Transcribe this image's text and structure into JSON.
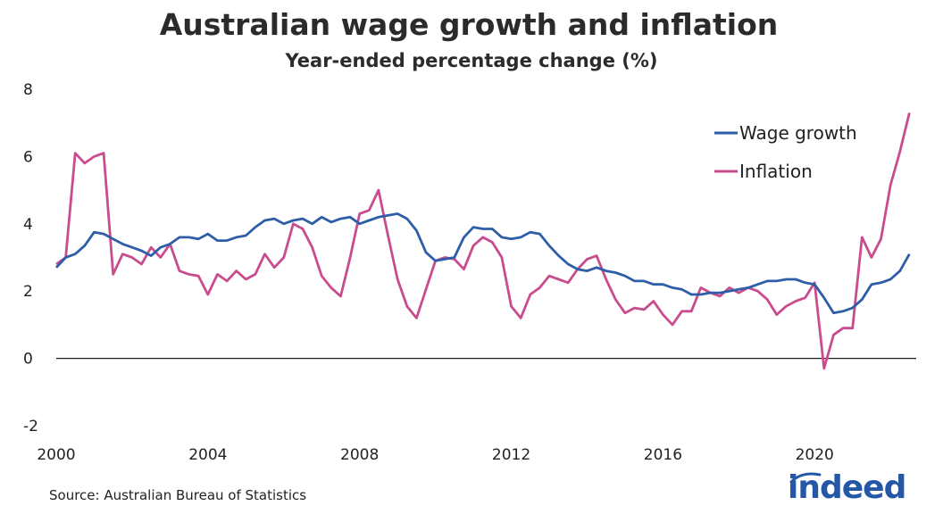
{
  "chart_data": {
    "type": "line",
    "title": "Australian wage growth and inflation",
    "subtitle": "Year-ended percentage change (%)",
    "xlim": [
      2000,
      2022.75
    ],
    "ylim": [
      -2,
      8
    ],
    "x_ticks": [
      2000,
      2004,
      2008,
      2012,
      2016,
      2020
    ],
    "y_ticks": [
      -2,
      0,
      2,
      4,
      6,
      8
    ],
    "legend_position": "top-right",
    "series": [
      {
        "name": "Wage growth",
        "color": "#2e5ea8",
        "points": [
          [
            2000.0,
            2.7
          ],
          [
            2000.25,
            3.0
          ],
          [
            2000.5,
            3.1
          ],
          [
            2000.75,
            3.35
          ],
          [
            2001.0,
            3.75
          ],
          [
            2001.25,
            3.7
          ],
          [
            2001.5,
            3.55
          ],
          [
            2001.75,
            3.4
          ],
          [
            2002.0,
            3.3
          ],
          [
            2002.25,
            3.2
          ],
          [
            2002.5,
            3.05
          ],
          [
            2002.75,
            3.3
          ],
          [
            2003.0,
            3.4
          ],
          [
            2003.25,
            3.6
          ],
          [
            2003.5,
            3.6
          ],
          [
            2003.75,
            3.55
          ],
          [
            2004.0,
            3.7
          ],
          [
            2004.25,
            3.5
          ],
          [
            2004.5,
            3.5
          ],
          [
            2004.75,
            3.6
          ],
          [
            2005.0,
            3.65
          ],
          [
            2005.25,
            3.9
          ],
          [
            2005.5,
            4.1
          ],
          [
            2005.75,
            4.15
          ],
          [
            2006.0,
            4.0
          ],
          [
            2006.25,
            4.1
          ],
          [
            2006.5,
            4.15
          ],
          [
            2006.75,
            4.0
          ],
          [
            2007.0,
            4.2
          ],
          [
            2007.25,
            4.05
          ],
          [
            2007.5,
            4.15
          ],
          [
            2007.75,
            4.2
          ],
          [
            2008.0,
            4.0
          ],
          [
            2008.25,
            4.1
          ],
          [
            2008.5,
            4.2
          ],
          [
            2008.75,
            4.25
          ],
          [
            2009.0,
            4.3
          ],
          [
            2009.25,
            4.15
          ],
          [
            2009.5,
            3.8
          ],
          [
            2009.75,
            3.15
          ],
          [
            2010.0,
            2.9
          ],
          [
            2010.25,
            2.95
          ],
          [
            2010.5,
            3.0
          ],
          [
            2010.75,
            3.6
          ],
          [
            2011.0,
            3.9
          ],
          [
            2011.25,
            3.85
          ],
          [
            2011.5,
            3.85
          ],
          [
            2011.75,
            3.6
          ],
          [
            2012.0,
            3.55
          ],
          [
            2012.25,
            3.6
          ],
          [
            2012.5,
            3.75
          ],
          [
            2012.75,
            3.7
          ],
          [
            2013.0,
            3.35
          ],
          [
            2013.25,
            3.05
          ],
          [
            2013.5,
            2.8
          ],
          [
            2013.75,
            2.65
          ],
          [
            2014.0,
            2.6
          ],
          [
            2014.25,
            2.7
          ],
          [
            2014.5,
            2.6
          ],
          [
            2014.75,
            2.55
          ],
          [
            2015.0,
            2.45
          ],
          [
            2015.25,
            2.3
          ],
          [
            2015.5,
            2.3
          ],
          [
            2015.75,
            2.2
          ],
          [
            2016.0,
            2.2
          ],
          [
            2016.25,
            2.1
          ],
          [
            2016.5,
            2.05
          ],
          [
            2016.75,
            1.9
          ],
          [
            2017.0,
            1.9
          ],
          [
            2017.25,
            1.95
          ],
          [
            2017.5,
            1.95
          ],
          [
            2017.75,
            2.0
          ],
          [
            2018.0,
            2.05
          ],
          [
            2018.25,
            2.1
          ],
          [
            2018.5,
            2.2
          ],
          [
            2018.75,
            2.3
          ],
          [
            2019.0,
            2.3
          ],
          [
            2019.25,
            2.35
          ],
          [
            2019.5,
            2.35
          ],
          [
            2019.75,
            2.25
          ],
          [
            2020.0,
            2.2
          ],
          [
            2020.25,
            1.8
          ],
          [
            2020.5,
            1.35
          ],
          [
            2020.75,
            1.4
          ],
          [
            2021.0,
            1.5
          ],
          [
            2021.25,
            1.75
          ],
          [
            2021.5,
            2.2
          ],
          [
            2021.75,
            2.25
          ],
          [
            2022.0,
            2.35
          ],
          [
            2022.25,
            2.6
          ],
          [
            2022.5,
            3.1
          ]
        ]
      },
      {
        "name": "Inflation",
        "color": "#c94c8e",
        "points": [
          [
            2000.0,
            2.8
          ],
          [
            2000.25,
            3.0
          ],
          [
            2000.5,
            6.1
          ],
          [
            2000.75,
            5.8
          ],
          [
            2001.0,
            6.0
          ],
          [
            2001.25,
            6.1
          ],
          [
            2001.5,
            2.5
          ],
          [
            2001.75,
            3.1
          ],
          [
            2002.0,
            3.0
          ],
          [
            2002.25,
            2.8
          ],
          [
            2002.5,
            3.3
          ],
          [
            2002.75,
            3.0
          ],
          [
            2003.0,
            3.4
          ],
          [
            2003.25,
            2.6
          ],
          [
            2003.5,
            2.5
          ],
          [
            2003.75,
            2.45
          ],
          [
            2004.0,
            1.9
          ],
          [
            2004.25,
            2.5
          ],
          [
            2004.5,
            2.3
          ],
          [
            2004.75,
            2.6
          ],
          [
            2005.0,
            2.35
          ],
          [
            2005.25,
            2.5
          ],
          [
            2005.5,
            3.1
          ],
          [
            2005.75,
            2.7
          ],
          [
            2006.0,
            3.0
          ],
          [
            2006.25,
            4.0
          ],
          [
            2006.5,
            3.85
          ],
          [
            2006.75,
            3.3
          ],
          [
            2007.0,
            2.45
          ],
          [
            2007.25,
            2.1
          ],
          [
            2007.5,
            1.85
          ],
          [
            2007.75,
            3.0
          ],
          [
            2008.0,
            4.3
          ],
          [
            2008.25,
            4.4
          ],
          [
            2008.5,
            5.0
          ],
          [
            2008.75,
            3.65
          ],
          [
            2009.0,
            2.35
          ],
          [
            2009.25,
            1.55
          ],
          [
            2009.5,
            1.2
          ],
          [
            2009.75,
            2.05
          ],
          [
            2010.0,
            2.9
          ],
          [
            2010.25,
            3.0
          ],
          [
            2010.5,
            2.95
          ],
          [
            2010.75,
            2.65
          ],
          [
            2011.0,
            3.35
          ],
          [
            2011.25,
            3.6
          ],
          [
            2011.5,
            3.45
          ],
          [
            2011.75,
            3.0
          ],
          [
            2012.0,
            1.55
          ],
          [
            2012.25,
            1.2
          ],
          [
            2012.5,
            1.9
          ],
          [
            2012.75,
            2.1
          ],
          [
            2013.0,
            2.45
          ],
          [
            2013.25,
            2.35
          ],
          [
            2013.5,
            2.25
          ],
          [
            2013.75,
            2.65
          ],
          [
            2014.0,
            2.95
          ],
          [
            2014.25,
            3.05
          ],
          [
            2014.5,
            2.35
          ],
          [
            2014.75,
            1.75
          ],
          [
            2015.0,
            1.35
          ],
          [
            2015.25,
            1.5
          ],
          [
            2015.5,
            1.45
          ],
          [
            2015.75,
            1.7
          ],
          [
            2016.0,
            1.3
          ],
          [
            2016.25,
            1.0
          ],
          [
            2016.5,
            1.4
          ],
          [
            2016.75,
            1.4
          ],
          [
            2017.0,
            2.1
          ],
          [
            2017.25,
            1.95
          ],
          [
            2017.5,
            1.85
          ],
          [
            2017.75,
            2.1
          ],
          [
            2018.0,
            1.95
          ],
          [
            2018.25,
            2.1
          ],
          [
            2018.5,
            2.0
          ],
          [
            2018.75,
            1.75
          ],
          [
            2019.0,
            1.3
          ],
          [
            2019.25,
            1.55
          ],
          [
            2019.5,
            1.7
          ],
          [
            2019.75,
            1.8
          ],
          [
            2020.0,
            2.25
          ],
          [
            2020.25,
            -0.3
          ],
          [
            2020.5,
            0.7
          ],
          [
            2020.75,
            0.9
          ],
          [
            2021.0,
            0.9
          ],
          [
            2021.25,
            3.6
          ],
          [
            2021.5,
            3.0
          ],
          [
            2021.75,
            3.55
          ],
          [
            2022.0,
            5.15
          ],
          [
            2022.25,
            6.15
          ],
          [
            2022.5,
            7.3
          ]
        ]
      }
    ]
  },
  "source": "Source: Australian Bureau of Statistics",
  "logo": {
    "text": "indeed",
    "color": "#2557a7"
  }
}
